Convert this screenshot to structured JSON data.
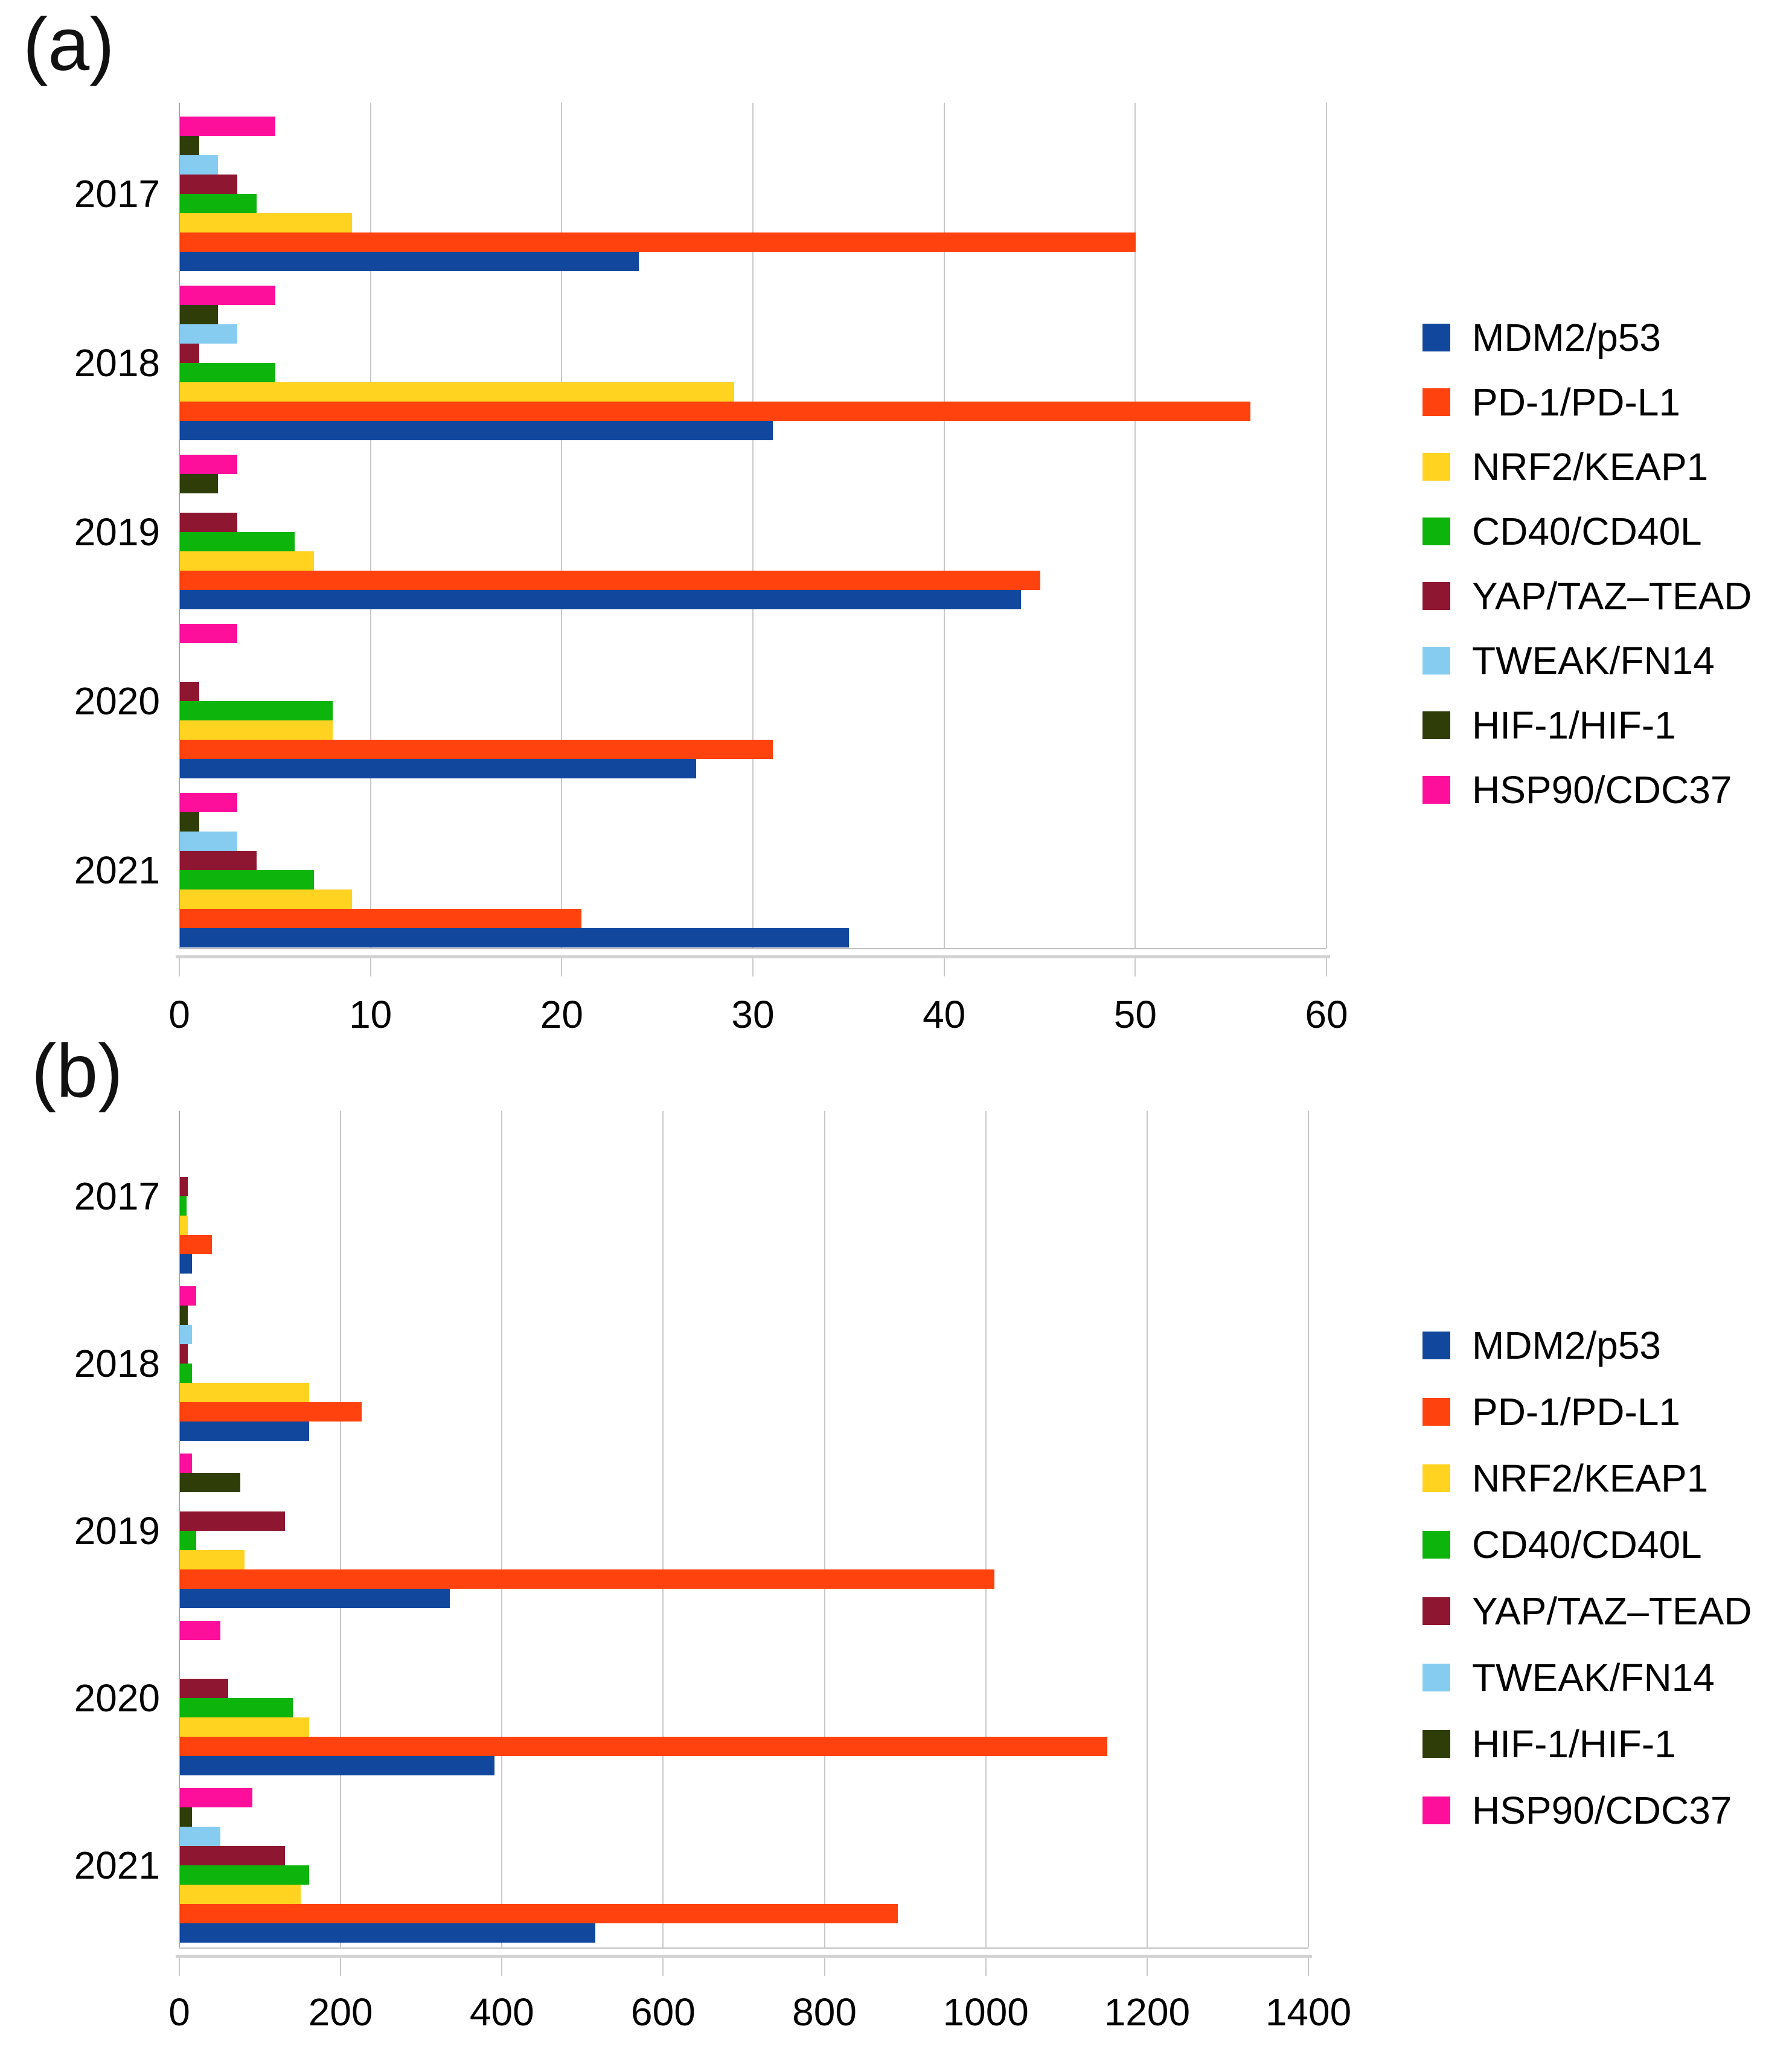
{
  "figure": {
    "panel_a_label": "(a)",
    "panel_b_label": "(b)"
  },
  "legend": [
    {
      "label": "MDM2/p53",
      "color": "#11489E"
    },
    {
      "label": "PD-1/PD-L1",
      "color": "#FF420E"
    },
    {
      "label": "NRF2/KEAP1",
      "color": "#FFD320"
    },
    {
      "label": "CD40/CD40L",
      "color": "#0CB40C"
    },
    {
      "label": "YAP/TAZ–TEAD",
      "color": "#8E1631"
    },
    {
      "label": "TWEAK/FN14",
      "color": "#86CCF1"
    },
    {
      "label": "HIF-1/HIF-1",
      "color": "#2F3E08"
    },
    {
      "label": "HSP90/CDC37",
      "color": "#FD0E9B"
    }
  ],
  "chart_data": [
    {
      "type": "bar",
      "orientation": "horizontal",
      "panel": "(a)",
      "title": "",
      "xlabel": "",
      "ylabel": "",
      "grid": true,
      "legend_position": "right",
      "xlim": [
        0,
        60
      ],
      "x_ticks": [
        0,
        10,
        20,
        30,
        40,
        50,
        60
      ],
      "categories": [
        "2017",
        "2018",
        "2019",
        "2020",
        "2021"
      ],
      "series": [
        {
          "name": "MDM2/p53",
          "values": [
            24,
            31,
            44,
            27,
            35
          ]
        },
        {
          "name": "PD-1/PD-L1",
          "values": [
            50,
            56,
            45,
            31,
            21
          ]
        },
        {
          "name": "NRF2/KEAP1",
          "values": [
            9,
            29,
            7,
            8,
            9
          ]
        },
        {
          "name": "CD40/CD40L",
          "values": [
            4,
            5,
            6,
            8,
            7
          ]
        },
        {
          "name": "YAP/TAZ–TEAD",
          "values": [
            3,
            1,
            3,
            1,
            4
          ]
        },
        {
          "name": "TWEAK/FN14",
          "values": [
            2,
            3,
            0,
            0,
            3
          ]
        },
        {
          "name": "HIF-1/HIF-1",
          "values": [
            1,
            2,
            2,
            0,
            1
          ]
        },
        {
          "name": "HSP90/CDC37",
          "values": [
            5,
            5,
            3,
            3,
            3
          ]
        }
      ]
    },
    {
      "type": "bar",
      "orientation": "horizontal",
      "panel": "(b)",
      "title": "",
      "xlabel": "",
      "ylabel": "",
      "grid": true,
      "legend_position": "right",
      "xlim": [
        0,
        1400
      ],
      "x_ticks": [
        0,
        200,
        400,
        600,
        800,
        1000,
        1200,
        1400
      ],
      "categories": [
        "2017",
        "2018",
        "2019",
        "2020",
        "2021"
      ],
      "series": [
        {
          "name": "MDM2/p53",
          "values": [
            15,
            160,
            335,
            390,
            515
          ]
        },
        {
          "name": "PD-1/PD-L1",
          "values": [
            40,
            225,
            1010,
            1150,
            890
          ]
        },
        {
          "name": "NRF2/KEAP1",
          "values": [
            10,
            160,
            80,
            160,
            150
          ]
        },
        {
          "name": "CD40/CD40L",
          "values": [
            8,
            15,
            20,
            140,
            160
          ]
        },
        {
          "name": "YAP/TAZ–TEAD",
          "values": [
            10,
            10,
            130,
            60,
            130
          ]
        },
        {
          "name": "TWEAK/FN14",
          "values": [
            0,
            15,
            0,
            0,
            50
          ]
        },
        {
          "name": "HIF-1/HIF-1",
          "values": [
            0,
            10,
            75,
            0,
            15
          ]
        },
        {
          "name": "HSP90/CDC37",
          "values": [
            0,
            20,
            15,
            50,
            90
          ]
        }
      ]
    }
  ]
}
